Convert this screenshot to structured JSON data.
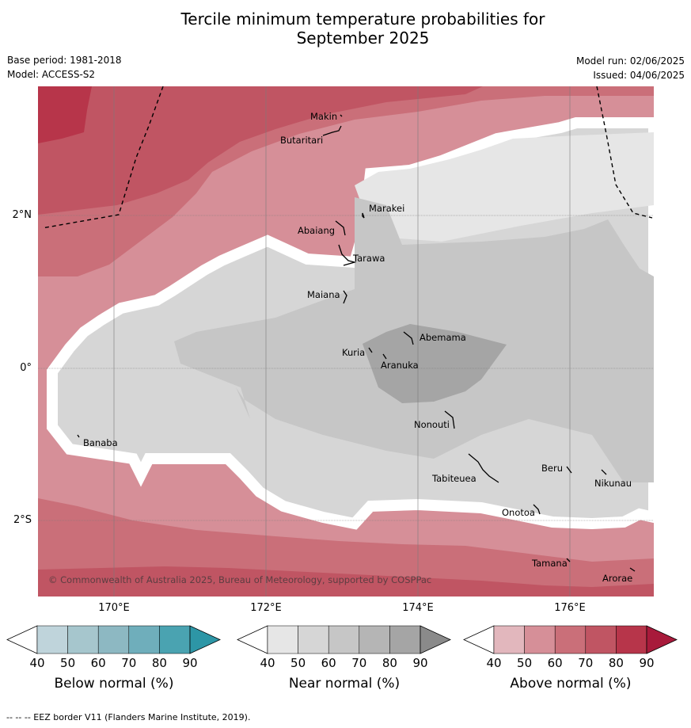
{
  "title_line1": "Tercile minimum temperature probabilities for",
  "title_line2": "September 2025",
  "base_period": "Base period: 1981-2018",
  "model": "Model: ACCESS-S2",
  "model_run": "Model run: 02/06/2025",
  "issued": "Issued: 04/06/2025",
  "copyright": "© Commonwealth of Australia 2025, Bureau of Meteorology, supported by COSPPac",
  "footer": "--  --  -- EEZ border V11 (Flanders Marine Institute, 2019).",
  "lat_labels": [
    "2°N",
    "0°",
    "2°S"
  ],
  "lon_labels": [
    "170°E",
    "172°E",
    "174°E",
    "176°E"
  ],
  "places": [
    "Makin",
    "Butaritari",
    "Marakei",
    "Abaiang",
    "Tarawa",
    "Maiana",
    "Abemama",
    "Kuria",
    "Aranuka",
    "Nonouti",
    "Banaba",
    "Tabiteuea",
    "Beru",
    "Nikunau",
    "Onotoa",
    "Tamana",
    "Arorae"
  ],
  "colorbars": [
    {
      "title": "Below normal (%)",
      "ticks": [
        "40",
        "50",
        "60",
        "70",
        "80",
        "90"
      ],
      "colors": [
        "#bfd4db",
        "#a6c6cd",
        "#8db8c2",
        "#6faebb",
        "#4aa3b1",
        "#2d96a6"
      ]
    },
    {
      "title": "Near normal (%)",
      "ticks": [
        "40",
        "50",
        "60",
        "70",
        "80",
        "90"
      ],
      "colors": [
        "#e6e6e6",
        "#d6d6d6",
        "#c6c6c6",
        "#b5b5b5",
        "#a5a5a5",
        "#8a8a8a"
      ]
    },
    {
      "title": "Above normal (%)",
      "ticks": [
        "40",
        "50",
        "60",
        "70",
        "80",
        "90"
      ],
      "colors": [
        "#e2b7bd",
        "#d68f98",
        "#ca6f79",
        "#c05563",
        "#b7354a",
        "#a81a3b"
      ]
    }
  ]
}
